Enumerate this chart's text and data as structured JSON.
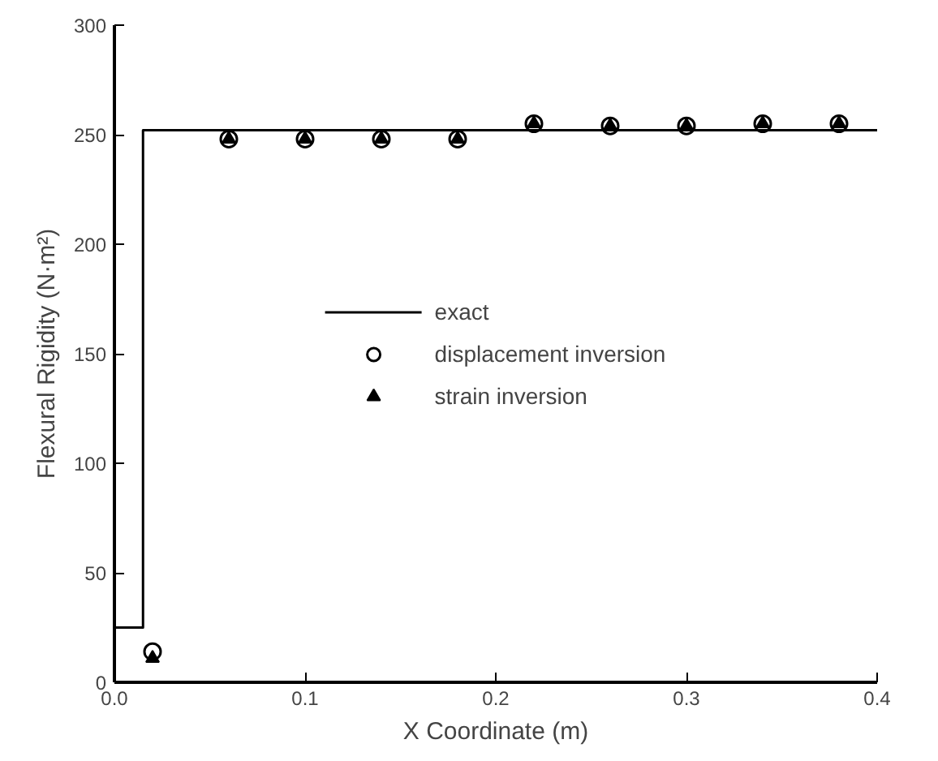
{
  "chart_data": {
    "type": "line",
    "xlabel": "X Coordinate (m)",
    "ylabel": "Flexural Rigidity (N·m²)",
    "xlim": [
      0,
      0.4
    ],
    "ylim": [
      0,
      300
    ],
    "xticks": [
      {
        "value": 0,
        "label": "0.0"
      },
      0.1,
      0.2,
      0.3,
      0.4
    ],
    "yticks": [
      0,
      50,
      100,
      150,
      200,
      250,
      300
    ],
    "grid": false,
    "legend": "center",
    "series": [
      {
        "name": "exact",
        "color": "#000000",
        "marker": "none",
        "x": [
          0,
          0.015,
          0.015,
          0.4
        ],
        "values": [
          25,
          25,
          252,
          252
        ]
      },
      {
        "name": "displacement inversion",
        "type": "scatter",
        "color": "#000000",
        "marker": "circle",
        "x": [
          0.02,
          0.06,
          0.1,
          0.14,
          0.18,
          0.22,
          0.26,
          0.3,
          0.34,
          0.38
        ],
        "values": [
          14,
          248,
          248,
          248,
          248,
          255,
          254,
          254,
          255,
          255
        ]
      },
      {
        "name": "strain inversion",
        "type": "scatter",
        "color": "#000000",
        "marker": "triangle",
        "x": [
          0.02,
          0.06,
          0.1,
          0.14,
          0.18,
          0.22,
          0.26,
          0.3,
          0.34,
          0.38
        ],
        "values": [
          11,
          248,
          248,
          248,
          248,
          255,
          254,
          254,
          255,
          255
        ]
      }
    ]
  }
}
